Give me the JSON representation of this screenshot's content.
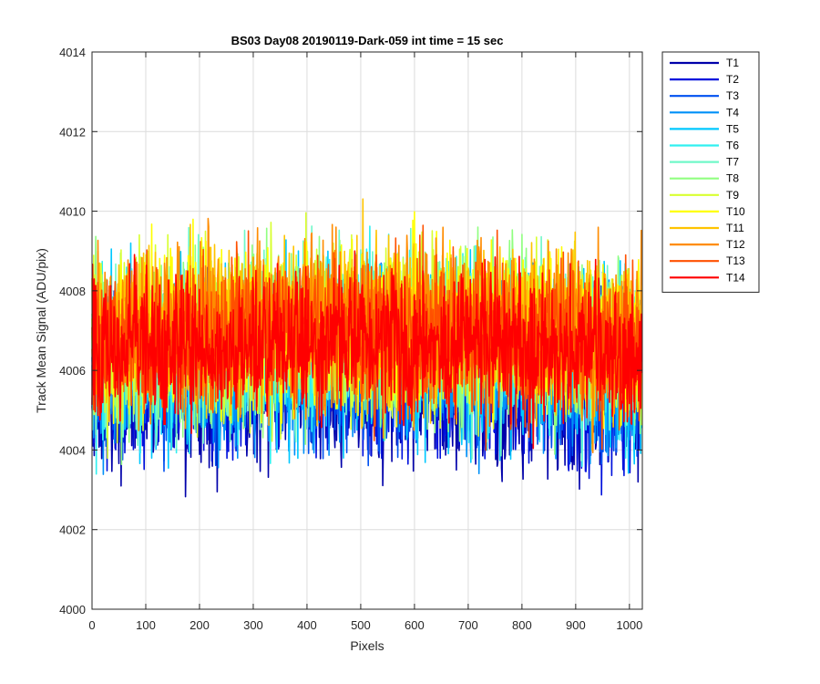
{
  "chart_data": {
    "type": "line",
    "title": "BS03 Day08 20190119-Dark-059 int time = 15 sec",
    "xlabel": "Pixels",
    "ylabel": "Track Mean Signal (ADU/pix)",
    "xlim": [
      0,
      1024
    ],
    "ylim": [
      4000,
      4014
    ],
    "xticks": [
      0,
      100,
      200,
      300,
      400,
      500,
      600,
      700,
      800,
      900,
      1000
    ],
    "yticks": [
      4000,
      4002,
      4004,
      4006,
      4008,
      4010,
      4012,
      4014
    ],
    "grid": true,
    "legend_position": "outside-right",
    "n_points": 1024,
    "series": [
      {
        "name": "T1",
        "color": "#0000aa",
        "center": 4005.3,
        "spread": 1.3
      },
      {
        "name": "T2",
        "color": "#0010dc",
        "center": 4005.5,
        "spread": 1.3
      },
      {
        "name": "T3",
        "color": "#0050f0",
        "center": 4005.8,
        "spread": 1.3
      },
      {
        "name": "T4",
        "color": "#0090f8",
        "center": 4006.0,
        "spread": 1.4
      },
      {
        "name": "T5",
        "color": "#00c8ff",
        "center": 4006.2,
        "spread": 1.4
      },
      {
        "name": "T6",
        "color": "#30f0f0",
        "center": 4006.4,
        "spread": 1.4
      },
      {
        "name": "T7",
        "color": "#70f8c8",
        "center": 4006.5,
        "spread": 1.4
      },
      {
        "name": "T8",
        "color": "#90ff80",
        "center": 4006.6,
        "spread": 1.4
      },
      {
        "name": "T9",
        "color": "#d8ff30",
        "center": 4006.7,
        "spread": 1.4
      },
      {
        "name": "T10",
        "color": "#ffff00",
        "center": 4006.8,
        "spread": 1.4
      },
      {
        "name": "T11",
        "color": "#ffc400",
        "center": 4006.8,
        "spread": 1.4
      },
      {
        "name": "T12",
        "color": "#ff8c00",
        "center": 4006.8,
        "spread": 1.4
      },
      {
        "name": "T13",
        "color": "#ff5000",
        "center": 4006.6,
        "spread": 1.3
      },
      {
        "name": "T14",
        "color": "#ff0000",
        "center": 4006.4,
        "spread": 1.2
      }
    ]
  }
}
